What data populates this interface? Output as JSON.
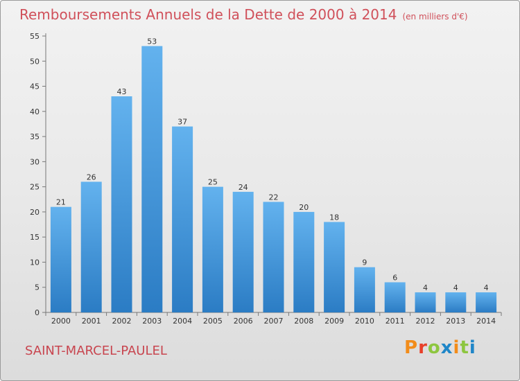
{
  "header": {
    "title": "Remboursements Annuels de la Dette de 2000 à 2014",
    "unit": "(en milliers d'€)"
  },
  "footer": {
    "commune": "SAINT-MARCEL-PAULEL",
    "logo": "Proxiti",
    "logo_colors": [
      "#f28c1a",
      "#e8402a",
      "#8dc63f",
      "#1f86c8",
      "#f28c1a",
      "#8dc63f",
      "#1f86c8"
    ]
  },
  "colors": {
    "bar": "#4a9be0",
    "bar_light": "#63b2ee",
    "bar_dark": "#2b7cc4",
    "title": "#d0505a"
  },
  "chart_data": {
    "type": "bar",
    "title": "Remboursements Annuels de la Dette de 2000 à 2014",
    "subtitle": "(en milliers d'€)",
    "categories": [
      "2000",
      "2001",
      "2002",
      "2003",
      "2004",
      "2005",
      "2006",
      "2007",
      "2008",
      "2009",
      "2010",
      "2011",
      "2012",
      "2013",
      "2014"
    ],
    "values": [
      21,
      26,
      43,
      53,
      37,
      25,
      24,
      22,
      20,
      18,
      9,
      6,
      4,
      4,
      4
    ],
    "ylim": [
      0,
      55
    ],
    "yticks": [
      0,
      5,
      10,
      15,
      20,
      25,
      30,
      35,
      40,
      45,
      50,
      55
    ],
    "grid": false,
    "xlabel": "",
    "ylabel": ""
  }
}
